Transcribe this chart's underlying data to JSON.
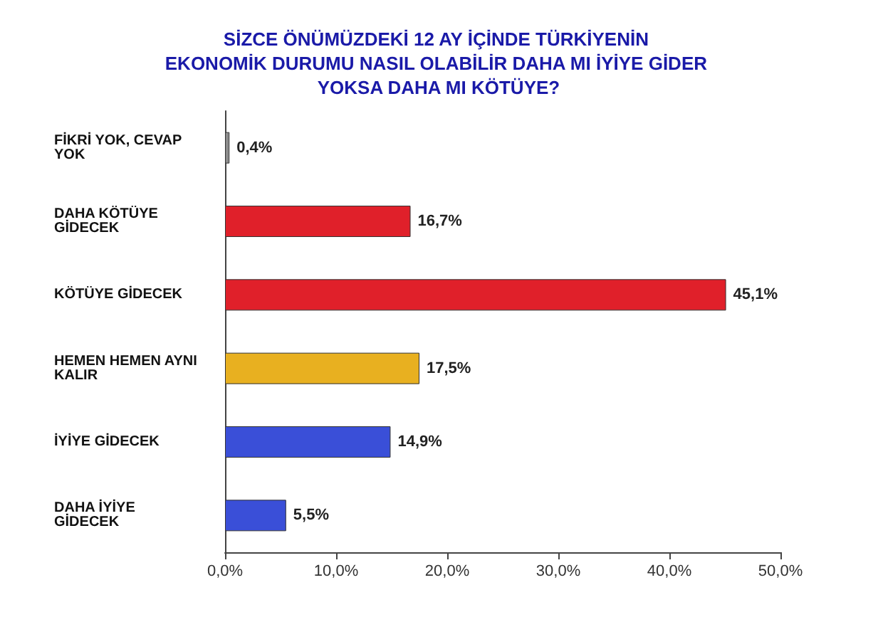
{
  "chart_data": {
    "type": "bar",
    "orientation": "horizontal",
    "title": "SİZCE ÖNÜMÜZDEKİ 12 AY İÇİNDE TÜRKİYENİN EKONOMİK DURUMU NASIL OLABİLİR DAHA MI İYİYE GİDER YOKSA DAHA MI KÖTÜYE?",
    "categories": [
      "FİKRİ YOK, CEVAP YOK",
      "DAHA KÖTÜYE GİDECEK",
      "KÖTÜYE GİDECEK",
      "HEMEN HEMEN AYNI KALIR",
      "İYİYE GİDECEK",
      "DAHA İYİYE GİDECEK"
    ],
    "values": [
      0.4,
      16.7,
      45.1,
      17.5,
      14.9,
      5.5
    ],
    "colors": [
      "#8c8c8c",
      "#e0202a",
      "#e0202a",
      "#e8b020",
      "#3a4fd8",
      "#3a4fd8"
    ],
    "value_labels": [
      "0,4%",
      "16,7%",
      "45,1%",
      "17,5%",
      "14,9%",
      "5,5%"
    ],
    "xlim": [
      0,
      50
    ],
    "xticks": [
      {
        "value": 0,
        "label": "0,0%"
      },
      {
        "value": 10,
        "label": "10,0%"
      },
      {
        "value": 20,
        "label": "20,0%"
      },
      {
        "value": 30,
        "label": "30,0%"
      },
      {
        "value": 40,
        "label": "40,0%"
      },
      {
        "value": 50,
        "label": "50,0%"
      }
    ]
  }
}
